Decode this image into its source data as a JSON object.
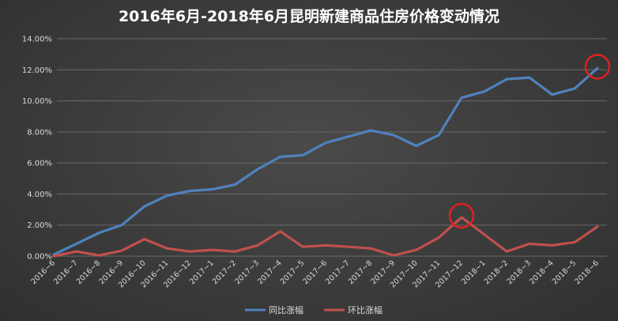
{
  "chart_data": {
    "type": "line",
    "title": "2016年6月-2018年6月昆明新建商品住房价格变动情况",
    "xlabel": "",
    "ylabel": "",
    "categories": [
      "2016~6",
      "2016~7",
      "2016~8",
      "2016~9",
      "2016~10",
      "2016~11",
      "2016~12",
      "2017~1",
      "2017~2",
      "2017~3",
      "2017~4",
      "2017~5",
      "2017~6",
      "2017~7",
      "2017~8",
      "2017~9",
      "2017~10",
      "2017~11",
      "2017~12",
      "2018~1",
      "2018~2",
      "2018~3",
      "2018~4",
      "2018~5",
      "2018~6"
    ],
    "ylim": [
      0,
      14
    ],
    "yticks": [
      "0.00%",
      "2.00%",
      "4.00%",
      "6.00%",
      "8.00%",
      "10.00%",
      "12.00%",
      "14.00%"
    ],
    "grid": true,
    "legend_position": "bottom",
    "series": [
      {
        "name": "同比涨幅",
        "color": "#4f81bd",
        "values": [
          0.1,
          0.8,
          1.5,
          2.0,
          3.2,
          3.9,
          4.2,
          4.3,
          4.6,
          5.6,
          6.4,
          6.5,
          7.3,
          7.7,
          8.1,
          7.8,
          7.1,
          7.8,
          10.2,
          10.6,
          11.4,
          11.5,
          10.4,
          10.8,
          12.1
        ]
      },
      {
        "name": "环比涨幅",
        "color": "#c0504d",
        "values": [
          0.0,
          0.3,
          0.05,
          0.35,
          1.1,
          0.5,
          0.3,
          0.4,
          0.3,
          0.7,
          1.6,
          0.6,
          0.7,
          0.6,
          0.5,
          0.05,
          0.4,
          1.2,
          2.5,
          1.4,
          0.3,
          0.8,
          0.7,
          0.9,
          1.9
        ]
      }
    ],
    "highlights": [
      {
        "series": 0,
        "index": 24,
        "color": "#e02020"
      },
      {
        "series": 1,
        "index": 18,
        "color": "#e02020"
      }
    ]
  }
}
